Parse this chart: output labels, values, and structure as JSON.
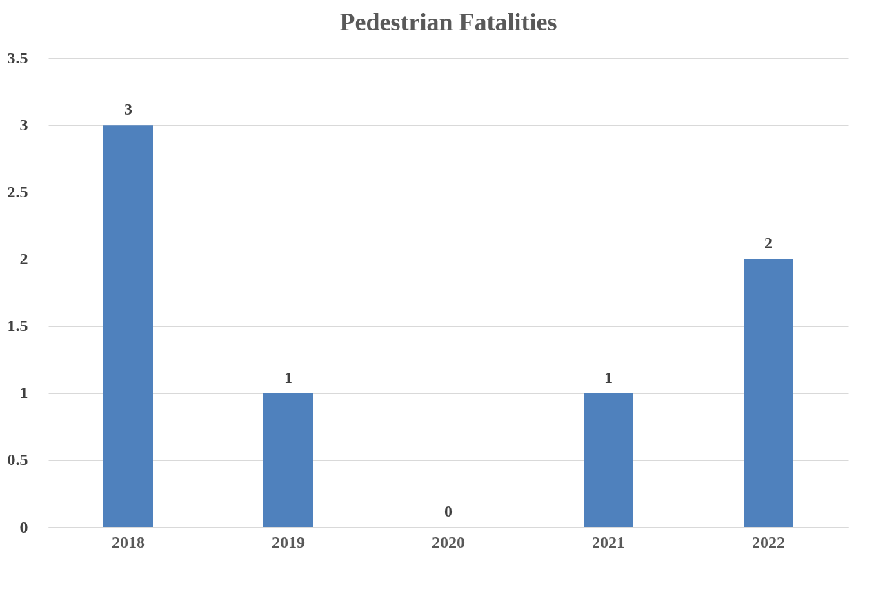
{
  "chart_data": {
    "type": "bar",
    "title": "Pedestrian Fatalities",
    "categories": [
      "2018",
      "2019",
      "2020",
      "2021",
      "2022"
    ],
    "values": [
      3,
      1,
      0,
      1,
      2
    ],
    "color": "#4f81bd",
    "ylim": [
      0,
      3.5
    ],
    "yticks": [
      0,
      0.5,
      1,
      1.5,
      2,
      2.5,
      3,
      3.5
    ],
    "grid": "y",
    "data_labels": true
  }
}
